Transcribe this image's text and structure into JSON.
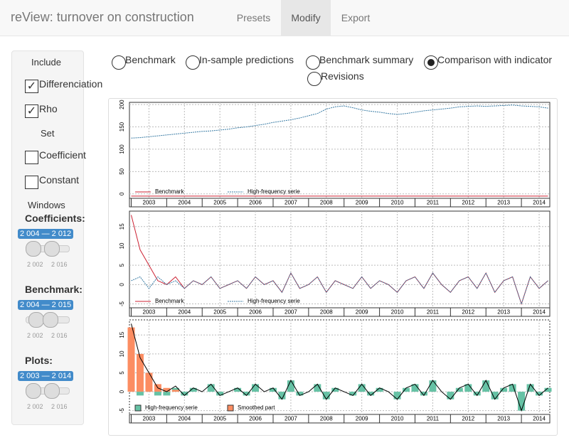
{
  "header": {
    "title": "reView: turnover on construction",
    "tabs": [
      "Presets",
      "Modify",
      "Export"
    ],
    "active_tab": 1
  },
  "sidebar": {
    "include_label": "Include",
    "include": [
      {
        "label": "Differenciation",
        "checked": true
      },
      {
        "label": "Rho",
        "checked": true
      }
    ],
    "set_label": "Set",
    "set": [
      {
        "label": "Coefficient",
        "checked": false
      },
      {
        "label": "Constant",
        "checked": false
      }
    ],
    "windows_label": "Windows",
    "sliders": [
      {
        "title": "Coefficients:",
        "range": "2 004 — 2 012",
        "ticks": [
          "2 002",
          "2 016"
        ]
      },
      {
        "title": "Benchmark:",
        "range": "2 004 — 2 015",
        "ticks": [
          "2 002",
          "2 016"
        ]
      },
      {
        "title": "Plots:",
        "range": "2 003 — 2 014",
        "ticks": [
          "2 002",
          "2 016"
        ]
      }
    ]
  },
  "radios": {
    "options": [
      "Benchmark",
      "In-sample predictions",
      "Benchmark summary",
      "Comparison with indicator",
      "Revisions"
    ],
    "selected": 3
  },
  "chart_data": [
    {
      "type": "line",
      "xlim": [
        2002.95,
        2014.8
      ],
      "ylim": [
        -10,
        205
      ],
      "yticks": [
        0,
        50,
        100,
        150,
        200
      ],
      "xticks": [
        {
          "value": 2003.5,
          "label": "2003"
        },
        {
          "value": 2004.5,
          "label": "2004"
        },
        {
          "value": 2005.5,
          "label": "2005"
        },
        {
          "value": 2006.5,
          "label": "2006"
        },
        {
          "value": 2007.5,
          "label": "2007"
        },
        {
          "value": 2008.5,
          "label": "2008"
        },
        {
          "value": 2009.5,
          "label": "2009"
        },
        {
          "value": 2010.5,
          "label": "2010"
        },
        {
          "value": 2011.5,
          "label": "2011"
        },
        {
          "value": 2012.5,
          "label": "2012"
        },
        {
          "value": 2013.5,
          "label": "2013"
        },
        {
          "value": 2014.5,
          "label": "2014"
        }
      ],
      "grid": true,
      "x": [
        2003,
        2003.25,
        2003.5,
        2003.75,
        2004,
        2004.25,
        2004.5,
        2004.75,
        2005,
        2005.25,
        2005.5,
        2005.75,
        2006,
        2006.25,
        2006.5,
        2006.75,
        2007,
        2007.25,
        2007.5,
        2007.75,
        2008,
        2008.25,
        2008.5,
        2008.75,
        2009,
        2009.25,
        2009.5,
        2009.75,
        2010,
        2010.25,
        2010.5,
        2010.75,
        2011,
        2011.25,
        2011.5,
        2011.75,
        2012,
        2012.25,
        2012.5,
        2012.75,
        2013,
        2013.25,
        2013.5,
        2013.75,
        2014,
        2014.25,
        2014.5,
        2014.75
      ],
      "series": [
        {
          "name": "Benchmark",
          "color": "#cc2233",
          "dashed": false,
          "values": [
            -5,
            -5,
            -5,
            -5,
            -5,
            -5,
            -5,
            -5,
            -5,
            -5,
            -5,
            -5,
            -5,
            -5,
            -5,
            -5,
            -5,
            -5,
            -5,
            -5,
            -5,
            -5,
            -5,
            -5,
            -5,
            -5,
            -5,
            -5,
            -5,
            -5,
            -5,
            -5,
            -5,
            -5,
            -5,
            -5,
            -5,
            -5,
            -5,
            -5,
            -5,
            -5,
            -5,
            -5,
            -5,
            -5,
            -5,
            -5
          ]
        },
        {
          "name": "High-frequency serie",
          "color": "#3a7ca5",
          "dashed": true,
          "values": [
            125,
            126,
            128,
            130,
            132,
            134,
            136,
            138,
            140,
            141,
            143,
            145,
            148,
            150,
            153,
            156,
            160,
            163,
            166,
            170,
            175,
            180,
            190,
            195,
            197,
            193,
            188,
            185,
            183,
            180,
            178,
            180,
            183,
            186,
            188,
            190,
            192,
            195,
            196,
            197,
            196,
            197,
            198,
            199,
            197,
            196,
            195,
            192
          ]
        }
      ]
    },
    {
      "type": "line",
      "xlim": [
        2002.95,
        2014.8
      ],
      "ylim": [
        -6,
        19
      ],
      "yticks": [
        -5,
        0,
        5,
        10,
        15
      ],
      "xticks": [
        {
          "value": 2003.5,
          "label": "2003"
        },
        {
          "value": 2004.5,
          "label": "2004"
        },
        {
          "value": 2005.5,
          "label": "2005"
        },
        {
          "value": 2006.5,
          "label": "2006"
        },
        {
          "value": 2007.5,
          "label": "2007"
        },
        {
          "value": 2008.5,
          "label": "2008"
        },
        {
          "value": 2009.5,
          "label": "2009"
        },
        {
          "value": 2010.5,
          "label": "2010"
        },
        {
          "value": 2011.5,
          "label": "2011"
        },
        {
          "value": 2012.5,
          "label": "2012"
        },
        {
          "value": 2013.5,
          "label": "2013"
        },
        {
          "value": 2014.5,
          "label": "2014"
        }
      ],
      "grid": true,
      "x": [
        2003,
        2003.25,
        2003.5,
        2003.75,
        2004,
        2004.25,
        2004.5,
        2004.75,
        2005,
        2005.25,
        2005.5,
        2005.75,
        2006,
        2006.25,
        2006.5,
        2006.75,
        2007,
        2007.25,
        2007.5,
        2007.75,
        2008,
        2008.25,
        2008.5,
        2008.75,
        2009,
        2009.25,
        2009.5,
        2009.75,
        2010,
        2010.25,
        2010.5,
        2010.75,
        2011,
        2011.25,
        2011.5,
        2011.75,
        2012,
        2012.25,
        2012.5,
        2012.75,
        2013,
        2013.25,
        2013.5,
        2013.75,
        2014,
        2014.25,
        2014.5,
        2014.75
      ],
      "series": [
        {
          "name": "Benchmark",
          "color": "#cc2233",
          "dashed": false,
          "values": [
            18,
            9,
            5,
            1,
            0,
            2,
            -1,
            1,
            0,
            2,
            -1,
            0,
            1,
            -1,
            2,
            0,
            1,
            -2,
            3,
            -1,
            0,
            2,
            -2,
            1,
            0,
            -1,
            2,
            -1,
            1,
            0,
            -2,
            1,
            2,
            -1,
            3,
            0,
            -2,
            1,
            2,
            -1,
            3,
            -2,
            1,
            2,
            -5,
            2,
            -1,
            1
          ]
        },
        {
          "name": "High-frequency serie",
          "color": "#3a7ca5",
          "dashed": true,
          "values": [
            1,
            2,
            -1,
            2,
            0,
            1,
            -1,
            1,
            0,
            2,
            -1,
            0,
            1,
            -1,
            2,
            0,
            1,
            -2,
            3,
            -1,
            0,
            2,
            -2,
            1,
            0,
            -1,
            2,
            -1,
            1,
            0,
            -2,
            1,
            2,
            -1,
            3,
            0,
            -2,
            1,
            2,
            -1,
            3,
            -2,
            1,
            2,
            -5,
            2,
            -1,
            1
          ]
        }
      ]
    },
    {
      "type": "combo",
      "xlim": [
        2002.95,
        2014.8
      ],
      "ylim": [
        -6,
        19
      ],
      "yticks": [
        -5,
        0,
        5,
        10,
        15
      ],
      "xticks": [
        {
          "value": 2003.5,
          "label": "2003"
        },
        {
          "value": 2004.5,
          "label": "2004"
        },
        {
          "value": 2005.5,
          "label": "2005"
        },
        {
          "value": 2006.5,
          "label": "2006"
        },
        {
          "value": 2007.5,
          "label": "2007"
        },
        {
          "value": 2008.5,
          "label": "2008"
        },
        {
          "value": 2009.5,
          "label": "2009"
        },
        {
          "value": 2010.5,
          "label": "2010"
        },
        {
          "value": 2011.5,
          "label": "2011"
        },
        {
          "value": 2012.5,
          "label": "2012"
        },
        {
          "value": 2013.5,
          "label": "2013"
        },
        {
          "value": 2014.5,
          "label": "2014"
        }
      ],
      "grid": true,
      "x": [
        2003,
        2003.25,
        2003.5,
        2003.75,
        2004,
        2004.25,
        2004.5,
        2004.75,
        2005,
        2005.25,
        2005.5,
        2005.75,
        2006,
        2006.25,
        2006.5,
        2006.75,
        2007,
        2007.25,
        2007.5,
        2007.75,
        2008,
        2008.25,
        2008.5,
        2008.75,
        2009,
        2009.25,
        2009.5,
        2009.75,
        2010,
        2010.25,
        2010.5,
        2010.75,
        2011,
        2011.25,
        2011.5,
        2011.75,
        2012,
        2012.25,
        2012.5,
        2012.75,
        2013,
        2013.25,
        2013.5,
        2013.75,
        2014,
        2014.25,
        2014.5,
        2014.75
      ],
      "series": [
        {
          "name": "High-frequency serie",
          "color": "#66c2a5",
          "values": [
            1,
            -1,
            0,
            -1,
            -1,
            1,
            -1,
            1,
            0,
            2,
            -1,
            0,
            1,
            -1,
            2,
            0,
            1,
            -2,
            3,
            -1,
            0,
            2,
            -2,
            1,
            0,
            -1,
            2,
            -1,
            1,
            0,
            -2,
            1,
            2,
            -1,
            3,
            0,
            -2,
            1,
            2,
            -1,
            3,
            -2,
            1,
            2,
            -5,
            2,
            -1,
            1
          ]
        },
        {
          "name": "Smoothed part",
          "color": "#fc8d62",
          "values": [
            17,
            10,
            5,
            2,
            1,
            0.5,
            0,
            0,
            0,
            0,
            0,
            0,
            0,
            0,
            0,
            0,
            0,
            0,
            0,
            0,
            0,
            0,
            0,
            0,
            0,
            0,
            0,
            0,
            0,
            0,
            0,
            0,
            0,
            0,
            0,
            0,
            0,
            0,
            0,
            0,
            0,
            0,
            0,
            0,
            0,
            0,
            0,
            0
          ]
        }
      ],
      "line": {
        "color": "#000000",
        "values": [
          18,
          9,
          5,
          1,
          0,
          1.5,
          -1,
          1,
          0,
          2,
          -1,
          0,
          1,
          -1,
          2,
          0,
          1,
          -2,
          3,
          -1,
          0,
          2,
          -2,
          1,
          0,
          -1,
          2,
          -1,
          1,
          0,
          -2,
          1,
          2,
          -1,
          3,
          0,
          -2,
          1,
          2,
          -1,
          3,
          -2,
          1,
          2,
          -5,
          2,
          -1,
          1
        ]
      }
    }
  ]
}
